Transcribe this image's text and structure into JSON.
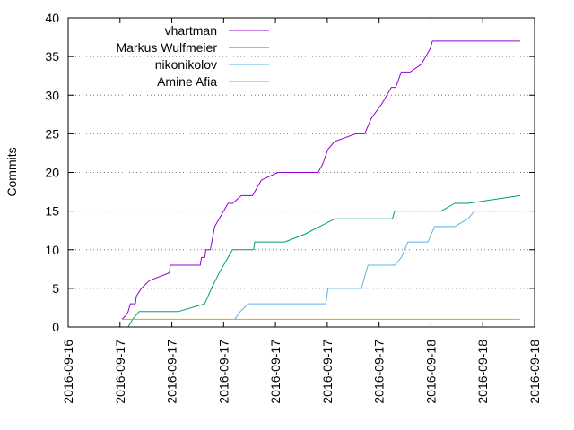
{
  "chart_data": {
    "type": "line",
    "title": "",
    "xlabel": "",
    "ylabel": "Commits",
    "ylim": [
      0,
      40
    ],
    "yticks": [
      0,
      5,
      10,
      15,
      20,
      25,
      30,
      35,
      40
    ],
    "xlim": [
      "2016-09-16 00:00",
      "2016-09-18 22:00"
    ],
    "xtick_labels": [
      "2016-09-16",
      "2016-09-17",
      "2016-09-17",
      "2016-09-17",
      "2016-09-17",
      "2016-09-17",
      "2016-09-17",
      "2016-09-18",
      "2016-09-18",
      "2016-09-18"
    ],
    "grid": "horizontal dotted",
    "legend_position": "top-left",
    "series": [
      {
        "name": "vhartman",
        "color": "#9400d3",
        "points": [
          [
            "2016-09-16 08:05",
            1
          ],
          [
            "2016-09-16 08:40",
            1.5
          ],
          [
            "2016-09-16 09:00",
            2
          ],
          [
            "2016-09-16 09:20",
            3
          ],
          [
            "2016-09-16 10:05",
            3
          ],
          [
            "2016-09-16 10:15",
            4
          ],
          [
            "2016-09-16 11:00",
            5
          ],
          [
            "2016-09-16 12:10",
            6
          ],
          [
            "2016-09-16 15:10",
            7
          ],
          [
            "2016-09-16 15:20",
            8
          ],
          [
            "2016-09-16 19:50",
            8
          ],
          [
            "2016-09-16 20:00",
            9
          ],
          [
            "2016-09-16 20:30",
            9
          ],
          [
            "2016-09-16 20:40",
            10
          ],
          [
            "2016-09-16 21:20",
            10
          ],
          [
            "2016-09-16 22:00",
            13
          ],
          [
            "2016-09-16 23:20",
            15
          ],
          [
            "2016-09-17 00:00",
            16
          ],
          [
            "2016-09-17 00:40",
            16
          ],
          [
            "2016-09-17 02:00",
            17
          ],
          [
            "2016-09-17 03:40",
            17
          ],
          [
            "2016-09-17 05:00",
            19
          ],
          [
            "2016-09-17 07:30",
            20
          ],
          [
            "2016-09-17 13:30",
            20
          ],
          [
            "2016-09-17 14:10",
            21
          ],
          [
            "2016-09-17 15:00",
            23
          ],
          [
            "2016-09-17 16:00",
            24
          ],
          [
            "2016-09-17 19:10",
            25
          ],
          [
            "2016-09-17 20:30",
            25
          ],
          [
            "2016-09-17 21:30",
            27
          ],
          [
            "2016-09-17 23:10",
            29
          ],
          [
            "2016-09-18 00:30",
            31
          ],
          [
            "2016-09-18 01:10",
            31
          ],
          [
            "2016-09-18 02:00",
            33
          ],
          [
            "2016-09-18 03:20",
            33
          ],
          [
            "2016-09-18 05:00",
            34
          ],
          [
            "2016-09-18 05:40",
            35
          ],
          [
            "2016-09-18 06:20",
            36
          ],
          [
            "2016-09-18 06:40",
            37
          ],
          [
            "2016-09-18 19:50",
            37
          ]
        ]
      },
      {
        "name": "Markus Wulfmeier",
        "color": "#009e73",
        "points": [
          [
            "2016-09-16 09:00",
            0
          ],
          [
            "2016-09-16 09:40",
            1
          ],
          [
            "2016-09-16 10:40",
            2
          ],
          [
            "2016-09-16 16:30",
            2
          ],
          [
            "2016-09-16 20:30",
            3
          ],
          [
            "2016-09-16 21:30",
            5
          ],
          [
            "2016-09-16 22:40",
            7
          ],
          [
            "2016-09-17 00:00",
            9
          ],
          [
            "2016-09-17 00:40",
            10
          ],
          [
            "2016-09-17 03:50",
            10
          ],
          [
            "2016-09-17 04:00",
            11
          ],
          [
            "2016-09-17 08:30",
            11
          ],
          [
            "2016-09-17 11:30",
            12
          ],
          [
            "2016-09-17 16:00",
            14
          ],
          [
            "2016-09-18 00:40",
            14
          ],
          [
            "2016-09-18 01:00",
            15
          ],
          [
            "2016-09-18 08:00",
            15
          ],
          [
            "2016-09-18 10:00",
            16
          ],
          [
            "2016-09-18 12:00",
            16
          ],
          [
            "2016-09-18 19:50",
            17
          ]
        ]
      },
      {
        "name": "nikonikolov",
        "color": "#56b4e9",
        "points": [
          [
            "2016-09-17 01:00",
            1
          ],
          [
            "2016-09-17 01:50",
            2
          ],
          [
            "2016-09-17 03:00",
            3
          ],
          [
            "2016-09-17 14:40",
            3
          ],
          [
            "2016-09-17 15:00",
            5
          ],
          [
            "2016-09-17 20:00",
            5
          ],
          [
            "2016-09-17 21:00",
            8
          ],
          [
            "2016-09-18 01:00",
            8
          ],
          [
            "2016-09-18 02:00",
            9
          ],
          [
            "2016-09-18 03:00",
            11
          ],
          [
            "2016-09-18 06:00",
            11
          ],
          [
            "2016-09-18 07:00",
            13
          ],
          [
            "2016-09-18 10:00",
            13
          ],
          [
            "2016-09-18 12:00",
            14
          ],
          [
            "2016-09-18 13:00",
            15
          ],
          [
            "2016-09-18 19:50",
            15
          ]
        ]
      },
      {
        "name": "Amine Afia",
        "color": "#e69f00",
        "points": [
          [
            "2016-09-16 08:10",
            1
          ],
          [
            "2016-09-18 19:50",
            1
          ]
        ]
      }
    ]
  }
}
